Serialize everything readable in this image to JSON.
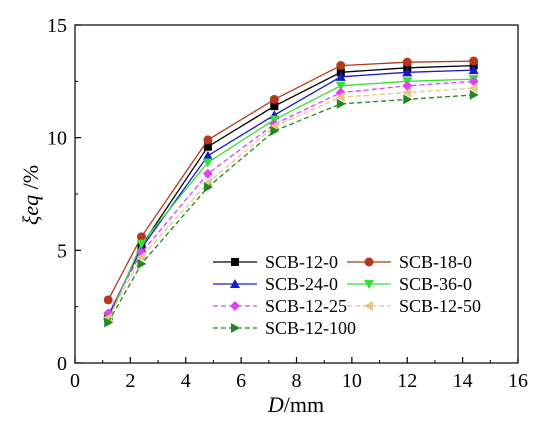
{
  "chart_data": {
    "type": "line",
    "x": [
      1.2,
      2.4,
      4.8,
      7.2,
      9.6,
      12.0,
      14.4
    ],
    "xlim": [
      0,
      16
    ],
    "ylim": [
      0,
      15
    ],
    "xticks": [
      0,
      2,
      4,
      6,
      8,
      10,
      12,
      14,
      16
    ],
    "yticks": [
      0,
      5,
      10,
      15
    ],
    "xlabel": {
      "var": "D",
      "unit": "/mm"
    },
    "ylabel": {
      "var": "ξeq",
      "unit": " /%"
    },
    "grid": false,
    "legend_position": "lower-right",
    "series": [
      {
        "name": "SCB-12-0",
        "color": "#000000",
        "marker": "square",
        "dash": "solid",
        "values": [
          2.0,
          5.2,
          9.6,
          11.4,
          12.9,
          13.1,
          13.2
        ]
      },
      {
        "name": "SCB-18-0",
        "color": "#b5371c",
        "marker": "circle",
        "dash": "solid",
        "values": [
          2.8,
          5.6,
          9.9,
          11.7,
          13.2,
          13.35,
          13.4
        ]
      },
      {
        "name": "SCB-24-0",
        "color": "#1a1acc",
        "marker": "triangle-up",
        "dash": "solid",
        "values": [
          2.1,
          5.1,
          9.2,
          11.0,
          12.7,
          12.9,
          13.0
        ]
      },
      {
        "name": "SCB-36-0",
        "color": "#33e033",
        "marker": "triangle-down",
        "dash": "solid",
        "values": [
          1.9,
          5.3,
          8.9,
          10.8,
          12.3,
          12.5,
          12.6
        ]
      },
      {
        "name": "SCB-12-25",
        "color": "#dd44ee",
        "marker": "diamond",
        "dash": "dashed",
        "values": [
          2.2,
          4.9,
          8.4,
          10.6,
          12.0,
          12.3,
          12.5
        ]
      },
      {
        "name": "SCB-12-50",
        "color": "#e8c48a",
        "marker": "triangle-left",
        "dash": "dashed",
        "values": [
          2.0,
          4.7,
          8.0,
          10.5,
          11.8,
          12.0,
          12.2
        ]
      },
      {
        "name": "SCB-12-100",
        "color": "#228822",
        "marker": "triangle-right",
        "dash": "dashed",
        "values": [
          1.8,
          4.4,
          7.8,
          10.3,
          11.5,
          11.7,
          11.9
        ]
      }
    ]
  }
}
